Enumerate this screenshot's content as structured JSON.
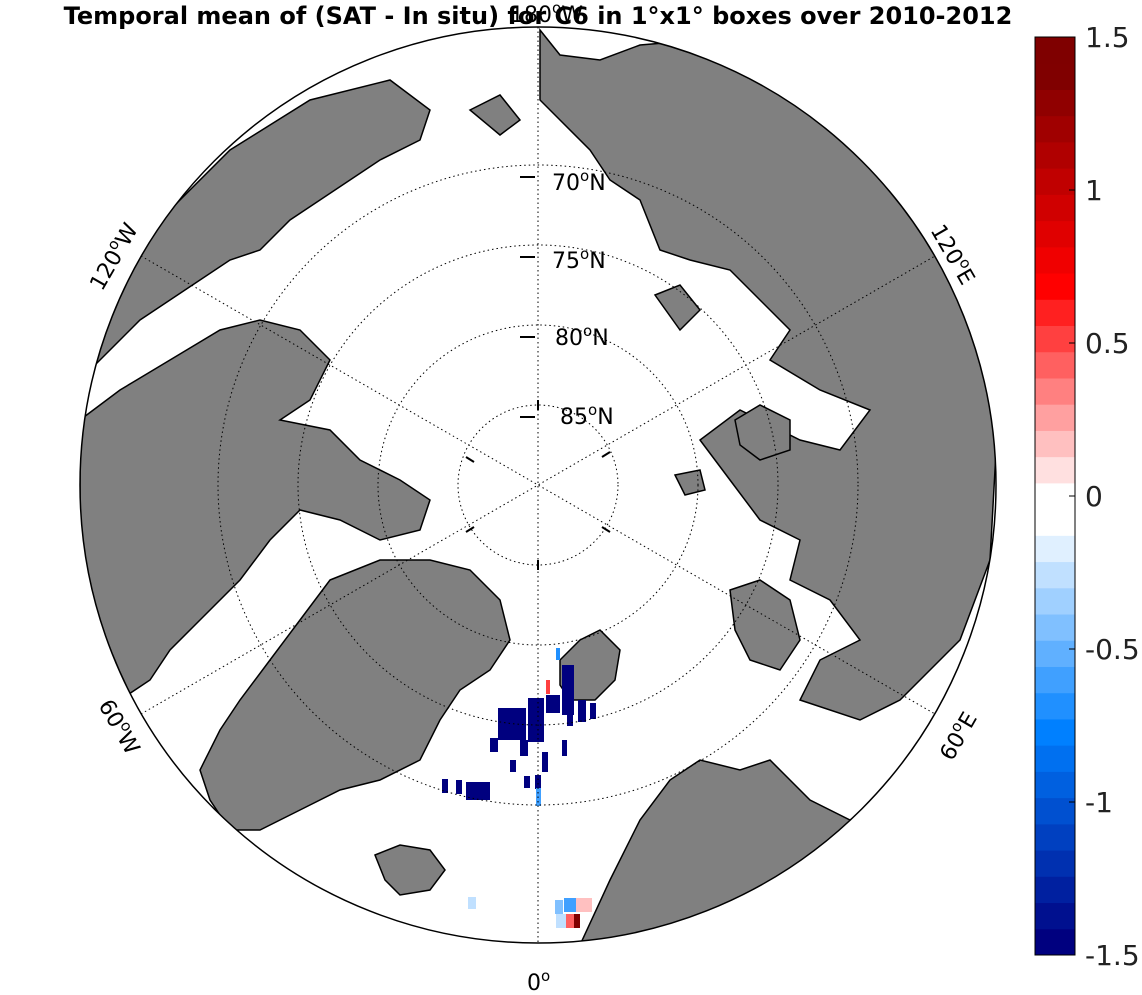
{
  "title": "Temporal mean of (SAT - In situ) for C6 in 1°x1° boxes over 2010-2012",
  "projection": "north polar stereographic",
  "longitude_labels": [
    {
      "lon": "180",
      "text": "180",
      "suffix": "W"
    },
    {
      "lon": "120E",
      "text": "120",
      "suffix": "E"
    },
    {
      "lon": "60E",
      "text": "60",
      "suffix": "E"
    },
    {
      "lon": "0",
      "text": "0",
      "suffix": ""
    },
    {
      "lon": "60W",
      "text": "60",
      "suffix": "W"
    },
    {
      "lon": "120W",
      "text": "120",
      "suffix": "W"
    }
  ],
  "latitude_labels": [
    {
      "text": "70",
      "suffix": "N"
    },
    {
      "text": "75",
      "suffix": "N"
    },
    {
      "text": "80",
      "suffix": "N"
    },
    {
      "text": "85",
      "suffix": "N"
    }
  ],
  "colorbar": {
    "min": -1.5,
    "max": 1.5,
    "ticks": [
      "1.5",
      "1",
      "0.5",
      "0",
      "-0.5",
      "-1",
      "-1.5"
    ],
    "colors": [
      "#00007f",
      "#00108f",
      "#0020a0",
      "#0030b0",
      "#0040c0",
      "#0050d0",
      "#0060e0",
      "#0070f0",
      "#0080ff",
      "#2090ff",
      "#40a0ff",
      "#60b0ff",
      "#80c0ff",
      "#a0d0ff",
      "#c0e0ff",
      "#e0f0ff",
      "#ffffff",
      "#ffffff",
      "#ffe0e0",
      "#ffc0c0",
      "#ffa0a0",
      "#ff8080",
      "#ff6060",
      "#ff4040",
      "#ff2020",
      "#ff0000",
      "#f00000",
      "#e00000",
      "#d00000",
      "#c00000",
      "#b00000",
      "#a00000",
      "#900000",
      "#800000",
      "#7f0000"
    ]
  },
  "colors": {
    "land": "#808080",
    "ocean": "#ffffff",
    "coast": "#000000"
  }
}
